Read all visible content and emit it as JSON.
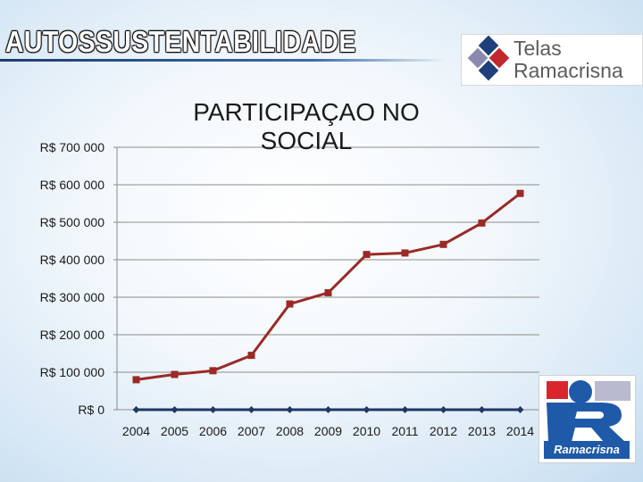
{
  "slide": {
    "title": "AUTOSSUSTENTABILIDADE"
  },
  "brand_logo": {
    "line1": "Telas",
    "line2": "Ramacrisna",
    "colors": [
      "#1f3f7a",
      "#c0282e",
      "#8a8ab0"
    ]
  },
  "corner_logo": {
    "text": "Ramacrisna",
    "colors": {
      "red": "#d8262c",
      "blue": "#1f5aa8"
    }
  },
  "chart_data": {
    "type": "line",
    "title": "PARTICIPAÇAO NO SOCIAL",
    "title_lines": [
      "PARTICIPAÇAO NO",
      "SOCIAL"
    ],
    "xlabel": "",
    "ylabel": "",
    "categories": [
      "2004",
      "2005",
      "2006",
      "2007",
      "2008",
      "2009",
      "2010",
      "2011",
      "2012",
      "2013",
      "2014"
    ],
    "ylim": [
      0,
      700000
    ],
    "yticks": [
      0,
      100000,
      200000,
      300000,
      400000,
      500000,
      600000,
      700000
    ],
    "ytick_labels": [
      "R$ 0",
      "R$ 100 000",
      "R$ 200 000",
      "R$ 300 000",
      "R$ 400 000",
      "R$ 500 000",
      "R$ 600 000",
      "R$ 700 000"
    ],
    "grid": true,
    "legend": "none",
    "series": [
      {
        "color": "#9b2a26",
        "marker": "square",
        "values": [
          80000,
          94000,
          104000,
          145000,
          282000,
          312000,
          414000,
          418000,
          441000,
          498000,
          577000
        ]
      },
      {
        "color": "#1f3864",
        "marker": "diamond",
        "values": [
          0,
          0,
          0,
          0,
          0,
          0,
          0,
          0,
          0,
          0,
          0
        ]
      }
    ]
  }
}
